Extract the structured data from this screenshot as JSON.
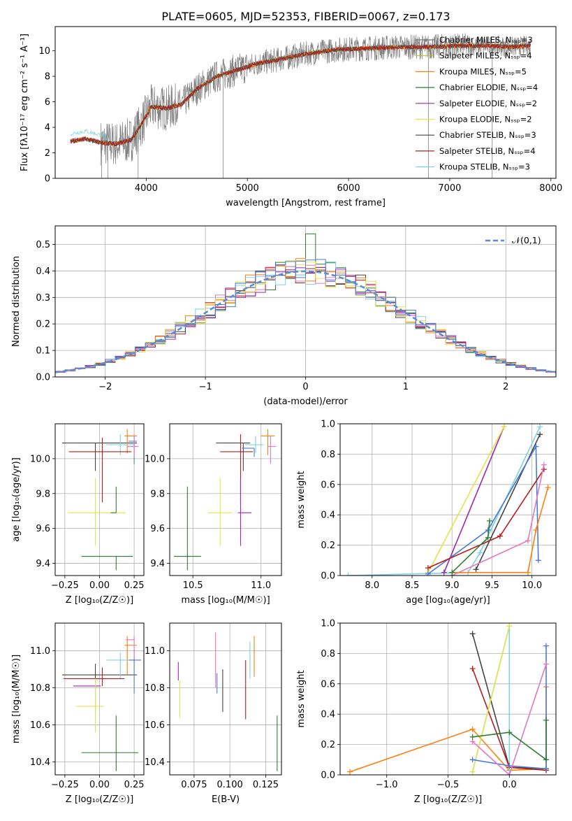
{
  "title": "PLATE=0605, MJD=52353, FIBERID=0067, z=0.173",
  "colors": {
    "chabrier_miles": "#6f6f6f",
    "salpeter_miles": "#bcbd22",
    "kroupa_miles": "#ff7f0e",
    "chabrier_elodie": "#2e7d32",
    "salpeter_elodie": "#9c27b0",
    "kroupa_elodie": "#e6e24a",
    "chabrier_stelib": "#444444",
    "salpeter_stelib": "#b71c1c",
    "kroupa_stelib": "#7fd3e0",
    "blue": "#4a7bd8",
    "pink": "#e377c2",
    "observed": "#808080",
    "gaussian": "#5b8bd6"
  },
  "chart_data": [
    {
      "id": "spectrum",
      "type": "line",
      "xlabel": "wavelength [Angstrom, rest frame]",
      "ylabel": "Flux [fλ10⁻¹⁷ erg cm⁻² s⁻¹ A⁻¹]",
      "xlim": [
        3100,
        8050
      ],
      "ylim": [
        0,
        11.9
      ],
      "xticks": [
        "4000",
        "5000",
        "6000",
        "7000",
        "8000"
      ],
      "yticks": [
        "0",
        "2",
        "4",
        "6",
        "8",
        "10"
      ],
      "legend_placement": "top-right",
      "legend": [
        "Chabrier MILES, Nₛₛₚ=3",
        "Salpeter MILES, Nₛₛₚ=4",
        "Kroupa MILES, Nₛₛₚ=5",
        "Chabrier ELODIE, Nₛₛₚ=4",
        "Salpeter ELODIE, Nₛₛₚ=2",
        "Kroupa ELODIE, Nₛₛₚ=2",
        "Chabrier STELIB, Nₛₛₚ=3",
        "Salpeter STELIB, Nₛₛₚ=4",
        "Kroupa STELIB, Nₛₛₚ=3"
      ],
      "continuum": {
        "x": [
          3250,
          3400,
          3550,
          3700,
          3850,
          3950,
          4050,
          4200,
          4350,
          4500,
          4700,
          4900,
          5100,
          5300,
          5600,
          5900,
          6200,
          6500,
          6800,
          7100,
          7400,
          7600,
          7800
        ],
        "y": [
          2.9,
          3.1,
          2.8,
          2.7,
          3.0,
          4.2,
          5.6,
          5.5,
          5.8,
          7.0,
          8.0,
          8.5,
          9.0,
          9.3,
          9.8,
          10.1,
          10.2,
          10.3,
          10.3,
          10.4,
          10.4,
          10.3,
          10.4
        ]
      }
    },
    {
      "id": "residuals",
      "type": "histogram",
      "xlabel": "(data-model)/error",
      "ylabel": "Normed distribution",
      "xlim": [
        -2.5,
        2.5
      ],
      "ylim": [
        0,
        0.57
      ],
      "xticks": [
        "−2",
        "−1",
        "0",
        "1",
        "2"
      ],
      "yticks": [
        "0.0",
        "0.1",
        "0.2",
        "0.3",
        "0.4",
        "0.5"
      ],
      "legend": "𝒩(0,1)",
      "legend_placement": "top-right",
      "bin_width": 0.1,
      "bin_start": -2.5
    },
    {
      "id": "age_vs_Z",
      "type": "errorbar",
      "xlabel": "Z [log₁₀(Z/Z☉)]",
      "ylabel": "age  [log₁₀(age/yr)]",
      "xlim": [
        -0.32,
        0.32
      ],
      "ylim": [
        9.33,
        10.2
      ],
      "xticks": [
        "−0.25",
        "0.00",
        "0.25"
      ],
      "yticks": [
        "9.4",
        "9.6",
        "9.8",
        "10.0"
      ],
      "points": [
        {
          "c": "chabrier_stelib",
          "x": -0.03,
          "xlo": 0.24,
          "xhi": 0.3,
          "y": 10.09,
          "ylo": 0.16,
          "yhi": 0.0
        },
        {
          "c": "kroupa_miles",
          "x": 0.2,
          "xlo": 0.02,
          "xhi": 0.07,
          "y": 10.13,
          "ylo": 0.1,
          "yhi": 0.04
        },
        {
          "c": "kroupa_stelib",
          "x": 0.15,
          "xlo": 0.1,
          "xhi": 0.1,
          "y": 10.08,
          "ylo": 0.06,
          "yhi": 0.06
        },
        {
          "c": "blue",
          "x": 0.25,
          "xlo": 0.04,
          "xhi": 0.02,
          "y": 10.1,
          "ylo": 0.13,
          "yhi": 0.03
        },
        {
          "c": "pink",
          "x": 0.25,
          "xlo": 0.05,
          "xhi": 0.03,
          "y": 10.07,
          "ylo": 0.06,
          "yhi": 0.07
        },
        {
          "c": "salpeter_stelib",
          "x": 0.02,
          "xlo": 0.24,
          "xhi": 0.21,
          "y": 10.04,
          "ylo": 0.29,
          "yhi": 0.08
        },
        {
          "c": "kroupa_elodie",
          "x": -0.03,
          "xlo": 0.2,
          "xhi": 0.22,
          "y": 9.69,
          "ylo": 0.19,
          "yhi": 0.2
        },
        {
          "c": "chabrier_elodie",
          "x": 0.12,
          "xlo": 0.04,
          "xhi": 0.0,
          "y": 9.69,
          "ylo": 0.0,
          "yhi": 0.15
        },
        {
          "c": "chabrier_elodie",
          "x": 0.12,
          "xlo": 0.25,
          "xhi": 0.12,
          "y": 9.44,
          "ylo": 0.08,
          "yhi": 0.0
        }
      ]
    },
    {
      "id": "age_vs_mass",
      "type": "errorbar",
      "xlabel": "mass [log₁₀(M/M☉)]",
      "ylabel": "",
      "xlim": [
        10.33,
        11.15
      ],
      "ylim": [
        9.33,
        10.2
      ],
      "xticks": [
        "10.5",
        "11.0"
      ],
      "yticks": [
        "9.4",
        "9.6",
        "9.8",
        "10.0"
      ],
      "points": [
        {
          "c": "chabrier_stelib",
          "x": 10.87,
          "xlo": 0.2,
          "xhi": 0.05,
          "y": 10.09,
          "ylo": 0.16,
          "yhi": 0.0
        },
        {
          "c": "kroupa_miles",
          "x": 11.05,
          "xlo": 0.05,
          "xhi": 0.05,
          "y": 10.13,
          "ylo": 0.11,
          "yhi": 0.04
        },
        {
          "c": "kroupa_stelib",
          "x": 10.96,
          "xlo": 0.08,
          "xhi": 0.06,
          "y": 10.08,
          "ylo": 0.05,
          "yhi": 0.05
        },
        {
          "c": "blue",
          "x": 10.95,
          "xlo": 0.09,
          "xhi": 0.0,
          "y": 10.06,
          "ylo": 0.05,
          "yhi": 0.0
        },
        {
          "c": "pink",
          "x": 11.07,
          "xlo": 0.02,
          "xhi": 0.04,
          "y": 10.07,
          "ylo": 0.1,
          "yhi": 0.06
        },
        {
          "c": "salpeter_stelib",
          "x": 10.85,
          "xlo": 0.15,
          "xhi": 0.09,
          "y": 10.04,
          "ylo": 0.29,
          "yhi": 0.1
        },
        {
          "c": "kroupa_elodie",
          "x": 10.7,
          "xlo": 0.09,
          "xhi": 0.09,
          "y": 9.69,
          "ylo": 0.19,
          "yhi": 0.2
        },
        {
          "c": "salpeter_elodie",
          "x": 10.85,
          "xlo": 0.02,
          "xhi": 0.08,
          "y": 9.69,
          "ylo": 0.19,
          "yhi": 0.19
        },
        {
          "c": "chabrier_elodie",
          "x": 10.46,
          "xlo": 0.1,
          "xhi": 0.1,
          "y": 9.44,
          "ylo": 0.08,
          "yhi": 0.4
        }
      ]
    },
    {
      "id": "mass_weight_vs_age",
      "type": "line",
      "xlabel": "age  [log₁₀(age/yr)]",
      "ylabel": "mass weight",
      "xlim": [
        7.6,
        10.3
      ],
      "ylim": [
        0,
        1.0
      ],
      "xticks": [
        "7.5",
        "8.0",
        "8.5",
        "9.0",
        "9.5",
        "10.0"
      ],
      "yticks": [
        "0.0",
        "0.2",
        "0.4",
        "0.6",
        "0.8",
        "1.0"
      ],
      "series": [
        {
          "c": "kroupa_stelib",
          "x": [
            7.7,
            9.2,
            9.35,
            10.1
          ],
          "y": [
            0.0,
            0.02,
            0.15,
            0.98
          ]
        },
        {
          "c": "salpeter_elodie",
          "x": [
            8.9,
            9.65
          ],
          "y": [
            0.02,
            0.98
          ]
        },
        {
          "c": "kroupa_elodie",
          "x": [
            8.7,
            9.65
          ],
          "y": [
            0.02,
            0.98
          ]
        },
        {
          "c": "chabrier_stelib",
          "x": [
            9.3,
            10.1
          ],
          "y": [
            0.04,
            0.93
          ]
        },
        {
          "c": "blue",
          "x": [
            8.7,
            9.45,
            10.05,
            10.08
          ],
          "y": [
            0.01,
            0.3,
            0.85,
            0.1
          ]
        },
        {
          "c": "salpeter_stelib",
          "x": [
            8.7,
            9.6,
            10.15
          ],
          "y": [
            0.05,
            0.26,
            0.7
          ]
        },
        {
          "c": "pink",
          "x": [
            9.0,
            9.95,
            10.15
          ],
          "y": [
            0.0,
            0.23,
            0.73
          ]
        },
        {
          "c": "kroupa_miles",
          "x": [
            9.0,
            9.95,
            10.05,
            10.2
          ],
          "y": [
            0.02,
            0.02,
            0.3,
            0.58
          ]
        },
        {
          "c": "chabrier_elodie",
          "x": [
            9.0,
            9.45,
            9.47
          ],
          "y": [
            0.02,
            0.25,
            0.36
          ]
        }
      ]
    },
    {
      "id": "mass_vs_Z",
      "type": "errorbar",
      "xlabel": "Z [log₁₀(Z/Z☉)]",
      "ylabel": "mass [log₁₀(M/M☉)]",
      "xlim": [
        -0.32,
        0.32
      ],
      "ylim": [
        10.33,
        11.15
      ],
      "xticks": [
        "−0.25",
        "0.00",
        "0.25"
      ],
      "yticks": [
        "10.4",
        "10.6",
        "10.8",
        "11.0"
      ],
      "points": [
        {
          "c": "chabrier_stelib",
          "x": -0.03,
          "xlo": 0.24,
          "xhi": 0.3,
          "y": 10.87,
          "ylo": 0.2,
          "yhi": 0.06
        },
        {
          "c": "kroupa_miles",
          "x": 0.2,
          "xlo": 0.02,
          "xhi": 0.07,
          "y": 11.03,
          "ylo": 0.16,
          "yhi": 0.05
        },
        {
          "c": "kroupa_stelib",
          "x": 0.15,
          "xlo": 0.1,
          "xhi": 0.1,
          "y": 10.95,
          "ylo": 0.1,
          "yhi": 0.04
        },
        {
          "c": "blue",
          "x": 0.25,
          "xlo": 0.04,
          "xhi": 0.05,
          "y": 10.95,
          "ylo": 0.18,
          "yhi": 0.06
        },
        {
          "c": "pink",
          "x": 0.25,
          "xlo": 0.06,
          "xhi": 0.0,
          "y": 11.06,
          "ylo": 0.1,
          "yhi": 0.02
        },
        {
          "c": "salpeter_stelib",
          "x": 0.02,
          "xlo": 0.28,
          "xhi": 0.16,
          "y": 10.85,
          "ylo": 0.04,
          "yhi": 0.06
        },
        {
          "c": "salpeter_elodie",
          "x": -0.03,
          "xlo": 0.16,
          "xhi": 0.04,
          "y": 10.81,
          "ylo": 0.0,
          "yhi": 0.0
        },
        {
          "c": "kroupa_elodie",
          "x": -0.03,
          "xlo": 0.14,
          "xhi": 0.06,
          "y": 10.7,
          "ylo": 0.14,
          "yhi": 0.15
        },
        {
          "c": "chabrier_elodie",
          "x": 0.12,
          "xlo": 0.25,
          "xhi": 0.16,
          "y": 10.45,
          "ylo": 0.1,
          "yhi": 0.2
        }
      ]
    },
    {
      "id": "mass_vs_ebv",
      "type": "errorbar",
      "xlabel": "E(B-V)",
      "ylabel": "",
      "xlim": [
        0.058,
        0.136
      ],
      "ylim": [
        10.33,
        11.15
      ],
      "xticks": [
        "0.075",
        "0.100",
        "0.125"
      ],
      "yticks": [
        "10.4",
        "10.6",
        "10.8",
        "11.0"
      ],
      "points": [
        {
          "c": "salpeter_elodie",
          "x": 0.064,
          "xlo": 0,
          "xhi": 0,
          "y": 10.84,
          "ylo": 0.0,
          "yhi": 0.1
        },
        {
          "c": "kroupa_elodie",
          "x": 0.065,
          "xlo": 0,
          "xhi": 0,
          "y": 10.74,
          "ylo": 0.1,
          "yhi": 0.1
        },
        {
          "c": "pink",
          "x": 0.09,
          "xlo": 0,
          "xhi": 0,
          "y": 11.0,
          "ylo": 0.2,
          "yhi": 0.1
        },
        {
          "c": "blue",
          "x": 0.091,
          "xlo": 0,
          "xhi": 0,
          "y": 10.88,
          "ylo": 0.11,
          "yhi": 0.0
        },
        {
          "c": "chabrier_stelib",
          "x": 0.095,
          "xlo": 0,
          "xhi": 0,
          "y": 10.8,
          "ylo": 0.13,
          "yhi": 0.1
        },
        {
          "c": "salpeter_stelib",
          "x": 0.111,
          "xlo": 0,
          "xhi": 0,
          "y": 10.85,
          "ylo": 0.22,
          "yhi": 0.1
        },
        {
          "c": "kroupa_stelib",
          "x": 0.114,
          "xlo": 0,
          "xhi": 0,
          "y": 10.95,
          "ylo": 0.1,
          "yhi": 0.1
        },
        {
          "c": "kroupa_miles",
          "x": 0.117,
          "xlo": 0,
          "xhi": 0,
          "y": 10.97,
          "ylo": 0.11,
          "yhi": 0.11
        },
        {
          "c": "chabrier_elodie",
          "x": 0.133,
          "xlo": 0,
          "xhi": 0,
          "y": 10.5,
          "ylo": 0.15,
          "yhi": 0.15
        }
      ]
    },
    {
      "id": "mass_weight_vs_Z",
      "type": "line",
      "xlabel": "Z [log₁₀(Z/Z☉)]",
      "ylabel": "mass weight",
      "xlim": [
        -1.38,
        0.38
      ],
      "ylim": [
        0,
        1.0
      ],
      "xticks": [
        "−1.0",
        "−0.5",
        "0.0"
      ],
      "yticks": [
        "0.0",
        "0.2",
        "0.4",
        "0.6",
        "0.8",
        "1.0"
      ],
      "series": [
        {
          "c": "kroupa_miles",
          "x": [
            -1.3,
            -0.3,
            0.0,
            0.3,
            0.3
          ],
          "y": [
            0.02,
            0.3,
            0.03,
            0.04,
            0.58
          ]
        },
        {
          "c": "chabrier_stelib",
          "x": [
            -0.3,
            0.0,
            0.3
          ],
          "y": [
            0.93,
            0.05,
            0.04
          ]
        },
        {
          "c": "salpeter_stelib",
          "x": [
            -0.3,
            0.0,
            0.3
          ],
          "y": [
            0.7,
            0.05,
            0.03
          ]
        },
        {
          "c": "kroupa_stelib",
          "x": [
            -0.3,
            0.0,
            0.0
          ],
          "y": [
            0.02,
            0.98,
            0.0
          ]
        },
        {
          "c": "kroupa_elodie",
          "x": [
            -0.3,
            0.0
          ],
          "y": [
            0.02,
            0.98
          ]
        },
        {
          "c": "blue",
          "x": [
            -0.3,
            0.0,
            0.3,
            0.3
          ],
          "y": [
            0.1,
            0.06,
            0.04,
            0.85
          ]
        },
        {
          "c": "pink",
          "x": [
            -0.3,
            0.0,
            0.3
          ],
          "y": [
            0.22,
            0.0,
            0.73
          ]
        },
        {
          "c": "chabrier_elodie",
          "x": [
            -0.3,
            0.0,
            0.3,
            0.3
          ],
          "y": [
            0.25,
            0.28,
            0.1,
            0.36
          ]
        }
      ]
    }
  ]
}
